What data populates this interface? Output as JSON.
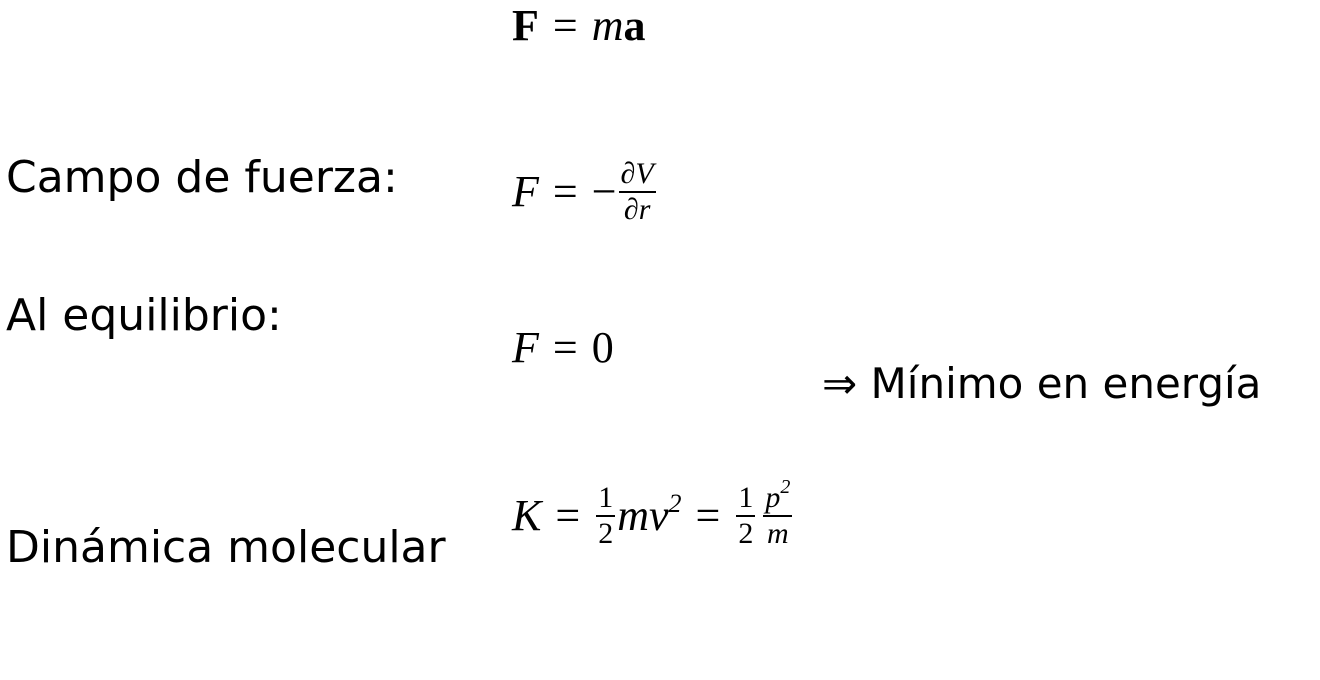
{
  "equations": {
    "newton": {
      "lhs": "F",
      "op": "=",
      "m": "m",
      "a": "a"
    },
    "force_field": {
      "lhs": "F",
      "op": "=",
      "minus": "−",
      "num": "∂V",
      "den": "∂r"
    },
    "equilibrium": {
      "lhs": "F",
      "op": "=",
      "rhs": "0"
    },
    "kinetic": {
      "lhs": "K",
      "op1": "=",
      "f1_num": "1",
      "f1_den": "2",
      "t1": "mv",
      "t1_exp": "2",
      "op2": "=",
      "f2_num": "1",
      "f2_den": "2",
      "f3_num": "p",
      "f3_num_exp": "2",
      "f3_den": "m"
    }
  },
  "labels": {
    "force_field": "Campo de fuerza:",
    "equilibrium": "Al equilibrio:",
    "molecular_dynamics": "Dinámica molecular"
  },
  "implication": "⇒ Mínimo en energía"
}
